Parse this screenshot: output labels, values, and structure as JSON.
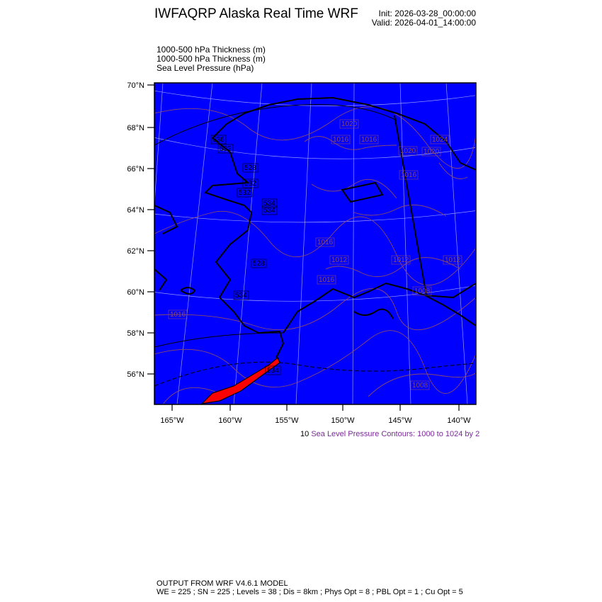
{
  "header": {
    "title": "IWFAQRP Alaska Real Time WRF",
    "init": "Init: 2026-03-28_00:00:00",
    "valid": "Valid: 2026-04-01_14:00:00"
  },
  "fields": [
    "1000-500 hPa Thickness   (m)",
    "1000-500 hPa Thickness   (m)",
    "Sea Level Pressure   (hPa)"
  ],
  "map": {
    "lat_labels": [
      "70°N",
      "68°N",
      "66°N",
      "64°N",
      "62°N",
      "60°N",
      "58°N",
      "56°N"
    ],
    "lon_labels": [
      "165°W",
      "160°W",
      "155°W",
      "150°W",
      "145°W",
      "140°W"
    ],
    "colors": {
      "background": "#0000ff",
      "land_warm": "#ff0000",
      "coast": "#000000",
      "slp_contour": "#8a4a6a",
      "grid": "#9999ff"
    },
    "slp_labels": [
      "1020",
      "1016",
      "1016",
      "1020",
      "1020",
      "1024",
      "1016",
      "1016",
      "1016",
      "1016",
      "1012",
      "1012",
      "1012",
      "1008",
      "1008"
    ],
    "thickness_labels": [
      "536",
      "532",
      "528",
      "532",
      "534",
      "534",
      "532",
      "528",
      "534",
      "534"
    ]
  },
  "legend": {
    "prefix": "10",
    "text": "Sea Level Pressure Contours: 1000 to 1024 by 2"
  },
  "footer": {
    "line1": "OUTPUT FROM WRF V4.6.1 MODEL",
    "line2": "WE = 225 ; SN = 225 ; Levels = 38 ; Dis = 8km ; Phys Opt = 8 ; PBL Opt = 1 ; Cu Opt = 5"
  }
}
